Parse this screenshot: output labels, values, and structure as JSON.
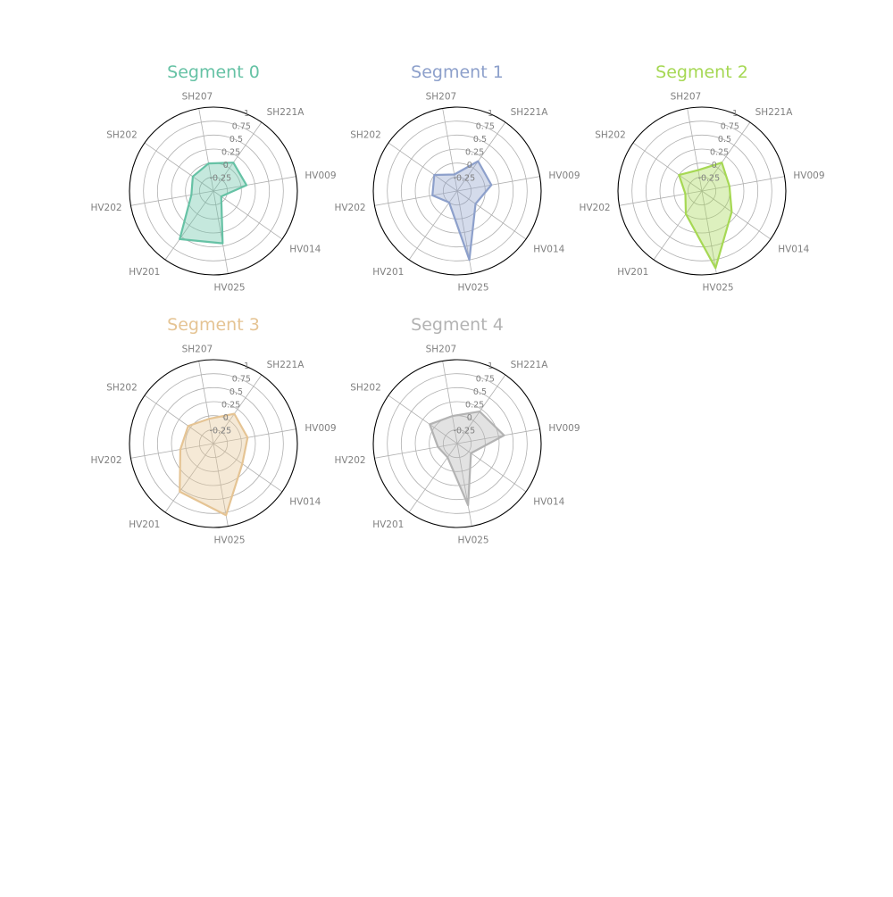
{
  "chart_data": {
    "type": "radar",
    "axes": [
      "HV009",
      "HV014",
      "HV025",
      "HV201",
      "HV202",
      "SH202",
      "SH207",
      "SH221A"
    ],
    "ticks": [
      "-0.25",
      "0",
      "0.25",
      "0.5",
      "0.75",
      "1"
    ],
    "rlim": [
      -0.5,
      1.0
    ],
    "grid": true,
    "panels": [
      {
        "title": "Segment 0",
        "color": "#66c2a5",
        "values": [
          0.1,
          -0.33,
          0.45,
          0.55,
          -0.1,
          -0.05,
          0.0,
          0.12
        ]
      },
      {
        "title": "Segment 1",
        "color": "#8da0cb",
        "values": [
          0.12,
          -0.1,
          0.75,
          -0.25,
          -0.05,
          0.0,
          -0.2,
          0.15
        ]
      },
      {
        "title": "Segment 2",
        "color": "#a6d854",
        "values": [
          0.0,
          0.15,
          0.9,
          0.0,
          -0.2,
          0.0,
          -0.12,
          0.12
        ]
      },
      {
        "title": "Segment 3",
        "color": "#e5c494",
        "values": [
          0.12,
          0.13,
          0.8,
          0.55,
          0.1,
          0.05,
          -0.05,
          0.15
        ]
      },
      {
        "title": "Segment 4",
        "color": "#b3b3b3",
        "values": [
          0.35,
          -0.2,
          0.62,
          -0.2,
          -0.15,
          0.1,
          0.0,
          0.2
        ]
      }
    ]
  }
}
